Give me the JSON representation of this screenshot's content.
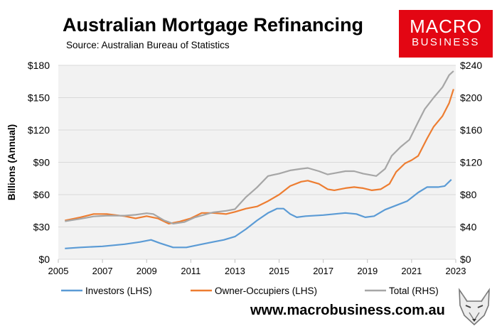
{
  "header": {
    "title": "Australian Mortgage Refinancing",
    "subtitle": "Source: Australian Bureau of Statistics"
  },
  "logo": {
    "line1": "MACRO",
    "line2": "BUSINESS",
    "color": "#e30613"
  },
  "footer": {
    "url": "www.macrobusiness.com.au",
    "icon": "fox-head-icon"
  },
  "chart_data": {
    "type": "line",
    "ylabel": "Billions (Annual)",
    "xlim": [
      2005,
      2023
    ],
    "ylim_left": [
      0,
      180
    ],
    "ylim_right": [
      0,
      240
    ],
    "x_ticks": [
      "2005",
      "2007",
      "2009",
      "2011",
      "2013",
      "2015",
      "2017",
      "2019",
      "2021",
      "2023"
    ],
    "y_ticks_left": [
      "$0",
      "$30",
      "$60",
      "$90",
      "$120",
      "$150",
      "$180"
    ],
    "y_ticks_right": [
      "$0",
      "$40",
      "$80",
      "$120",
      "$160",
      "$200",
      "$240"
    ],
    "grid": true,
    "plot_background": "#f2f2f2",
    "legend_position": "bottom",
    "series": [
      {
        "name": "Investors (LHS)",
        "axis": "left",
        "color": "#5b9bd5",
        "points": [
          [
            2005.3,
            10
          ],
          [
            2006.0,
            11
          ],
          [
            2007.0,
            12
          ],
          [
            2008.0,
            14
          ],
          [
            2008.7,
            16
          ],
          [
            2009.2,
            18
          ],
          [
            2009.6,
            15
          ],
          [
            2010.2,
            11
          ],
          [
            2010.8,
            11
          ],
          [
            2011.5,
            14
          ],
          [
            2012.0,
            16
          ],
          [
            2012.5,
            18
          ],
          [
            2013.0,
            21
          ],
          [
            2013.5,
            28
          ],
          [
            2014.0,
            36
          ],
          [
            2014.5,
            43
          ],
          [
            2014.9,
            47
          ],
          [
            2015.2,
            47
          ],
          [
            2015.5,
            42
          ],
          [
            2015.8,
            39
          ],
          [
            2016.2,
            40
          ],
          [
            2017.0,
            41
          ],
          [
            2017.5,
            42
          ],
          [
            2018.0,
            43
          ],
          [
            2018.5,
            42
          ],
          [
            2018.9,
            39
          ],
          [
            2019.3,
            40
          ],
          [
            2019.8,
            46
          ],
          [
            2020.3,
            50
          ],
          [
            2020.8,
            54
          ],
          [
            2021.3,
            62
          ],
          [
            2021.7,
            67
          ],
          [
            2022.2,
            67
          ],
          [
            2022.5,
            68
          ],
          [
            2022.8,
            74
          ]
        ]
      },
      {
        "name": "Owner-Occupiers (LHS)",
        "axis": "left",
        "color": "#ed7d31",
        "points": [
          [
            2005.3,
            36
          ],
          [
            2006.0,
            39
          ],
          [
            2006.6,
            42
          ],
          [
            2007.2,
            42
          ],
          [
            2008.0,
            40
          ],
          [
            2008.5,
            38
          ],
          [
            2009.0,
            40
          ],
          [
            2009.5,
            38
          ],
          [
            2010.0,
            33
          ],
          [
            2010.5,
            35
          ],
          [
            2011.0,
            38
          ],
          [
            2011.5,
            43
          ],
          [
            2012.0,
            43
          ],
          [
            2012.6,
            42
          ],
          [
            2013.0,
            44
          ],
          [
            2013.5,
            47
          ],
          [
            2014.0,
            49
          ],
          [
            2014.5,
            54
          ],
          [
            2015.0,
            60
          ],
          [
            2015.5,
            68
          ],
          [
            2016.0,
            72
          ],
          [
            2016.3,
            73
          ],
          [
            2016.8,
            70
          ],
          [
            2017.2,
            65
          ],
          [
            2017.5,
            64
          ],
          [
            2018.0,
            66
          ],
          [
            2018.4,
            67
          ],
          [
            2018.8,
            66
          ],
          [
            2019.2,
            64
          ],
          [
            2019.6,
            65
          ],
          [
            2020.0,
            70
          ],
          [
            2020.3,
            81
          ],
          [
            2020.7,
            89
          ],
          [
            2021.0,
            92
          ],
          [
            2021.3,
            96
          ],
          [
            2021.7,
            112
          ],
          [
            2022.0,
            123
          ],
          [
            2022.4,
            133
          ],
          [
            2022.7,
            145
          ],
          [
            2022.9,
            158
          ]
        ]
      },
      {
        "name": "Total (RHS)",
        "axis": "right",
        "color": "#a6a6a6",
        "points": [
          [
            2005.3,
            47
          ],
          [
            2006.0,
            50
          ],
          [
            2006.6,
            53
          ],
          [
            2007.2,
            54
          ],
          [
            2008.0,
            54
          ],
          [
            2008.5,
            55
          ],
          [
            2009.0,
            57
          ],
          [
            2009.3,
            56
          ],
          [
            2009.8,
            48
          ],
          [
            2010.2,
            44
          ],
          [
            2010.7,
            46
          ],
          [
            2011.2,
            52
          ],
          [
            2011.6,
            55
          ],
          [
            2012.0,
            58
          ],
          [
            2012.6,
            60
          ],
          [
            2013.0,
            62
          ],
          [
            2013.5,
            77
          ],
          [
            2014.0,
            89
          ],
          [
            2014.5,
            103
          ],
          [
            2015.0,
            106
          ],
          [
            2015.5,
            110
          ],
          [
            2016.0,
            112
          ],
          [
            2016.3,
            113
          ],
          [
            2016.8,
            109
          ],
          [
            2017.2,
            105
          ],
          [
            2017.6,
            107
          ],
          [
            2018.0,
            109
          ],
          [
            2018.4,
            109
          ],
          [
            2018.8,
            106
          ],
          [
            2019.0,
            105
          ],
          [
            2019.4,
            103
          ],
          [
            2019.8,
            112
          ],
          [
            2020.1,
            128
          ],
          [
            2020.5,
            139
          ],
          [
            2020.9,
            148
          ],
          [
            2021.3,
            170
          ],
          [
            2021.6,
            186
          ],
          [
            2022.0,
            200
          ],
          [
            2022.4,
            213
          ],
          [
            2022.7,
            228
          ],
          [
            2022.9,
            233
          ]
        ]
      }
    ]
  }
}
